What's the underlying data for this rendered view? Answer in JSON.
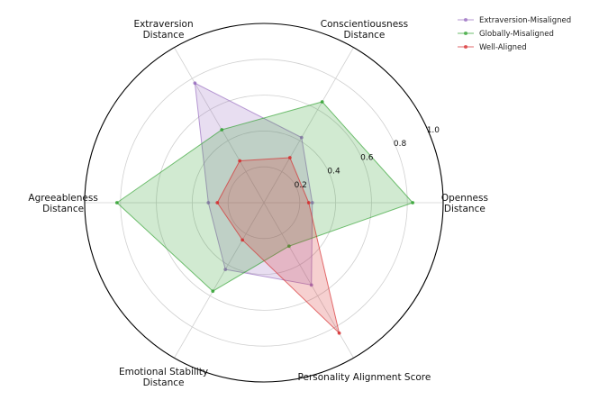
{
  "chart_data": {
    "type": "radar",
    "axes": [
      "Openness\nDistance",
      "Conscientiousness\nDistance",
      "Extraversion\nDistance",
      "Agreeableness\nDistance",
      "Emotional Stability\nDistance",
      "Personality Alignment Score"
    ],
    "rlim": [
      0,
      1.0
    ],
    "rticks": [
      0.2,
      0.4,
      0.6,
      0.8,
      1.0
    ],
    "rtick_labels": [
      "0.2",
      "0.4",
      "0.6",
      "0.8",
      "1.0"
    ],
    "grid": true,
    "legend_position": "top-right",
    "series": [
      {
        "name": "Extraversion-Misaligned",
        "color": "#9467bd",
        "values": [
          0.27,
          0.42,
          0.77,
          0.31,
          0.43,
          0.53
        ]
      },
      {
        "name": "Globally-Misaligned",
        "color": "#2ca02c",
        "values": [
          0.83,
          0.65,
          0.47,
          0.82,
          0.57,
          0.28
        ]
      },
      {
        "name": "Well-Aligned",
        "color": "#d62728",
        "values": [
          0.25,
          0.29,
          0.27,
          0.26,
          0.24,
          0.84
        ]
      }
    ]
  }
}
